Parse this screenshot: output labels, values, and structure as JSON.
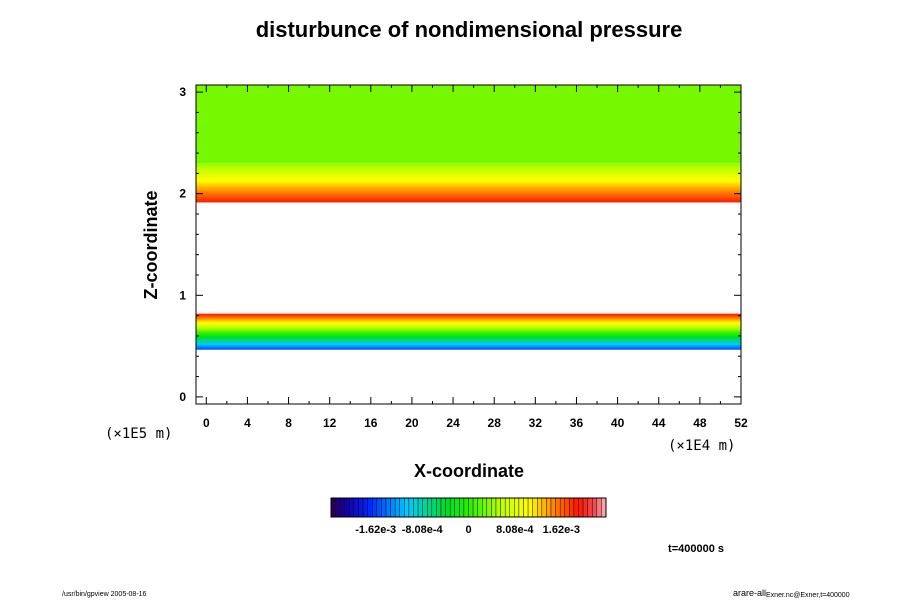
{
  "chart_data": {
    "type": "heatmap",
    "title": "disturbunce of nondimensional pressure",
    "xlabel": "X-coordinate",
    "ylabel": "Z-coordinate",
    "x_unit_label": "(×1E4 m)",
    "z_unit_label": "(×1E5 m)",
    "xlim": [
      -1,
      52
    ],
    "ylim": [
      -0.07,
      3.07
    ],
    "x_ticks": [
      0,
      4,
      8,
      12,
      16,
      20,
      24,
      28,
      32,
      36,
      40,
      44,
      48,
      52
    ],
    "x_tick_labels": [
      "0",
      "4",
      "8",
      "12",
      "16",
      "20",
      "24",
      "28",
      "32",
      "36",
      "40",
      "44",
      "48",
      "52"
    ],
    "y_ticks": [
      0,
      1,
      2,
      3
    ],
    "y_tick_labels": [
      "0",
      "1",
      "2",
      "3"
    ],
    "field_layers": [
      {
        "name": "lower blank",
        "z_from": -0.07,
        "z_to": 0.47,
        "value": null
      },
      {
        "name": "lower disturbance band",
        "z_from": 0.47,
        "z_to": 0.82,
        "value_from": -0.0016,
        "value_to": 0.0019
      },
      {
        "name": "middle blank",
        "z_from": 0.82,
        "z_to": 1.92,
        "value": null
      },
      {
        "name": "upper disturbance band",
        "z_from": 1.92,
        "z_to": 2.3,
        "value_from": 0.0019,
        "value_to": 0.0004
      },
      {
        "name": "upper uniform region",
        "z_from": 2.3,
        "z_to": 3.07,
        "value": 0.0003
      }
    ],
    "colorbar": {
      "min": -0.0024,
      "max": 0.0024,
      "tick_values": [
        -0.00162,
        -0.000808,
        0,
        0.000808,
        0.00162
      ],
      "tick_labels": [
        "-1.62e-3",
        "-8.08e-4",
        "0",
        "8.08e-4",
        "1.62e-3"
      ]
    },
    "time_label": "t=400000 s"
  },
  "footer": {
    "left": "/usr/bin/gpview 2005-08-16",
    "right_main": "arare-all",
    "right_sub": "Exner.nc@Exner,t=400000"
  }
}
